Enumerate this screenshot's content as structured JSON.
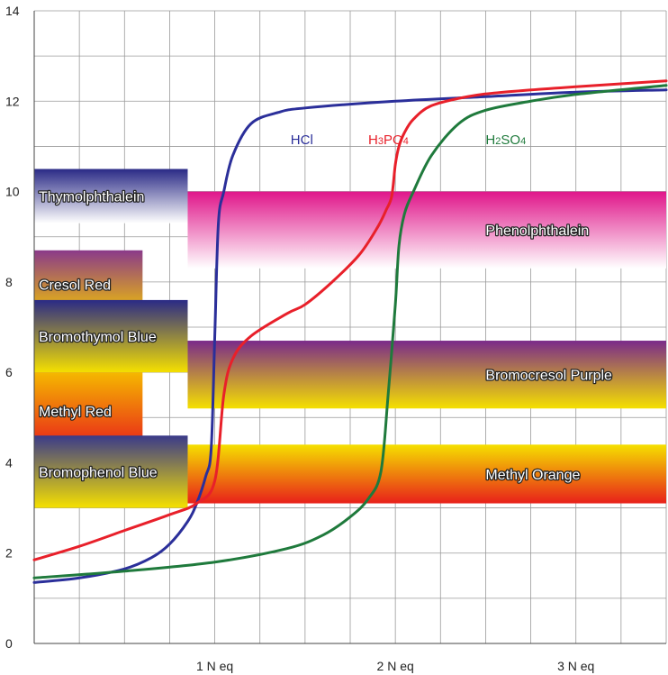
{
  "chart_data": {
    "type": "line",
    "title": "",
    "xlabel": "",
    "ylabel": "",
    "xlim": [
      0,
      3.5
    ],
    "ylim": [
      0,
      14
    ],
    "grid": true,
    "y_ticks": [
      0,
      2,
      4,
      6,
      8,
      10,
      12,
      14
    ],
    "x_ticks": [
      {
        "value": 1,
        "label": "1 N eq"
      },
      {
        "value": 2,
        "label": "2 N eq"
      },
      {
        "value": 3,
        "label": "3 N eq"
      }
    ],
    "series": [
      {
        "name": "HCl",
        "color": "#2b2f9a",
        "x": [
          0,
          0.25,
          0.5,
          0.65,
          0.75,
          0.85,
          0.9,
          0.95,
          0.98,
          1.0,
          1.02,
          1.05,
          1.1,
          1.2,
          1.35,
          1.5,
          2.0,
          2.5,
          3.0,
          3.5
        ],
        "y": [
          1.35,
          1.45,
          1.65,
          1.9,
          2.2,
          2.7,
          3.1,
          3.7,
          4.3,
          6.8,
          9.3,
          10.0,
          10.8,
          11.5,
          11.75,
          11.85,
          12.0,
          12.1,
          12.2,
          12.25
        ]
      },
      {
        "name": "H3PO4",
        "color": "#e8202a",
        "x": [
          0,
          0.25,
          0.5,
          0.75,
          0.9,
          1.0,
          1.05,
          1.1,
          1.2,
          1.4,
          1.5,
          1.65,
          1.8,
          1.9,
          1.95,
          1.98,
          2.0,
          2.02,
          2.05,
          2.1,
          2.2,
          2.4,
          2.6,
          3.0,
          3.5
        ],
        "y": [
          1.85,
          2.15,
          2.5,
          2.85,
          3.1,
          3.6,
          5.5,
          6.3,
          6.8,
          7.3,
          7.5,
          8.0,
          8.6,
          9.2,
          9.6,
          9.9,
          10.6,
          11.0,
          11.3,
          11.6,
          11.9,
          12.1,
          12.2,
          12.32,
          12.45
        ]
      },
      {
        "name": "H2SO4",
        "color": "#1f7a3c",
        "x": [
          0,
          0.5,
          1.0,
          1.4,
          1.6,
          1.75,
          1.85,
          1.92,
          1.96,
          2.0,
          2.02,
          2.05,
          2.1,
          2.2,
          2.35,
          2.5,
          2.75,
          3.0,
          3.5
        ],
        "y": [
          1.45,
          1.6,
          1.8,
          2.1,
          2.4,
          2.8,
          3.2,
          3.8,
          5.5,
          7.5,
          8.8,
          9.5,
          10.0,
          10.8,
          11.5,
          11.8,
          12.0,
          12.15,
          12.35
        ]
      }
    ],
    "indicators": [
      {
        "name": "Thymolphthalein",
        "x_end": 0.85,
        "y_range": [
          9.3,
          10.5
        ],
        "top_color": "#2a2a86",
        "bottom_color": "#ffffff"
      },
      {
        "name": "Phenolphthalein",
        "x_end": 3.5,
        "y_range": [
          8.3,
          10.0
        ],
        "top_color": "#e0168a",
        "bottom_color": "#ffffff"
      },
      {
        "name": "Cresol Red",
        "x_end": 0.6,
        "y_range": [
          7.2,
          8.7
        ],
        "top_color": "#8a3a8a",
        "bottom_color": "#f5c800"
      },
      {
        "name": "Bromothymol Blue",
        "x_end": 0.85,
        "y_range": [
          6.0,
          7.6
        ],
        "top_color": "#2a2a86",
        "bottom_color": "#f5e000"
      },
      {
        "name": "Bromocresol Purple",
        "x_end": 3.5,
        "y_range": [
          5.2,
          6.7
        ],
        "top_color": "#7a2a8a",
        "bottom_color": "#f5e000"
      },
      {
        "name": "Methyl Red",
        "x_end": 0.6,
        "y_range": [
          4.3,
          6.0
        ],
        "top_color": "#f5b800",
        "bottom_color": "#e8201a"
      },
      {
        "name": "Bromophenol Blue",
        "x_end": 0.85,
        "y_range": [
          3.0,
          4.6
        ],
        "top_color": "#3a3a8a",
        "bottom_color": "#f5e000"
      },
      {
        "name": "Methyl Orange",
        "x_end": 3.5,
        "y_range": [
          3.1,
          4.4
        ],
        "top_color": "#f5e000",
        "bottom_color": "#e8201a"
      }
    ]
  }
}
